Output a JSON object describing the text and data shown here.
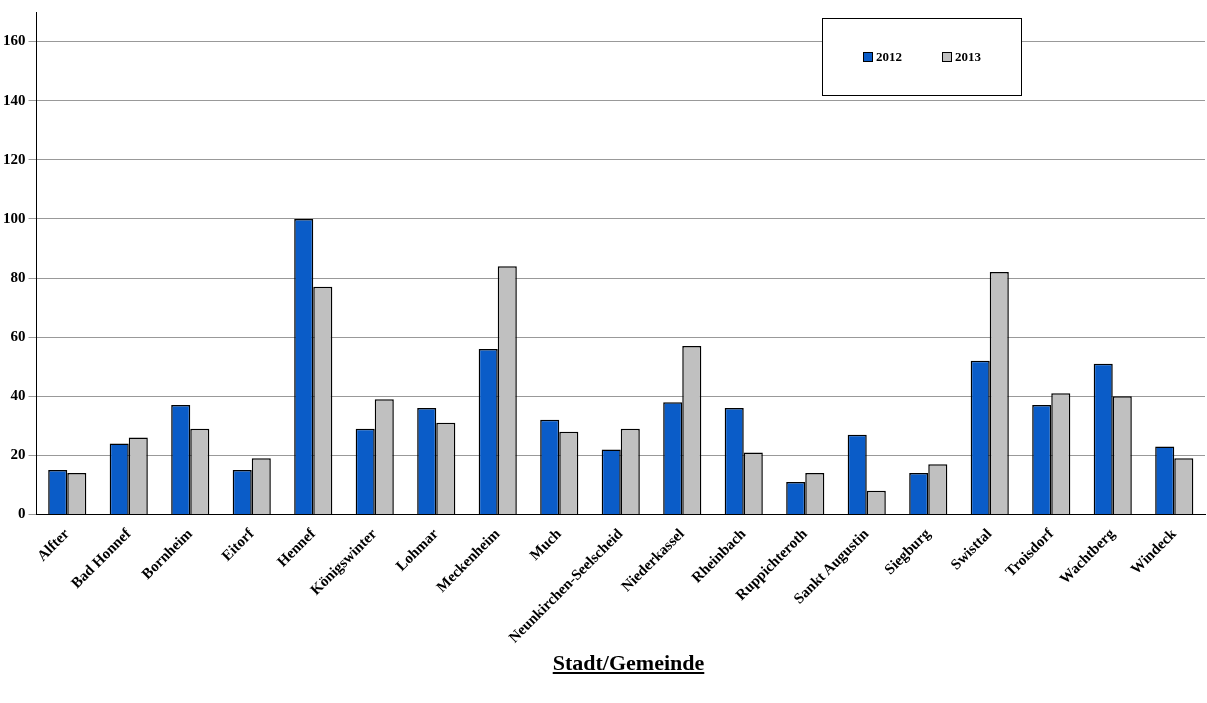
{
  "chart_data": {
    "type": "bar",
    "xlabel": "Stadt/Gemeinde",
    "categories": [
      "Alfter",
      "Bad Honnef",
      "Bornheim",
      "Eitorf",
      "Hennef",
      "Königswinter",
      "Lohmar",
      "Meckenheim",
      "Much",
      "Neunkirchen-Seelscheid",
      "Niederkassel",
      "Rheinbach",
      "Ruppichteroth",
      "Sankt Augustin",
      "Siegburg",
      "Swisttal",
      "Troisdorf",
      "Wachtberg",
      "Windeck"
    ],
    "series": [
      {
        "name": "2012",
        "color": "#0a5cc8",
        "values": [
          15,
          24,
          37,
          15,
          100,
          29,
          36,
          56,
          32,
          22,
          38,
          36,
          11,
          27,
          14,
          52,
          37,
          51,
          23
        ]
      },
      {
        "name": "2013",
        "color": "#c0c0c0",
        "values": [
          14,
          26,
          29,
          19,
          77,
          39,
          31,
          84,
          28,
          29,
          57,
          21,
          14,
          8,
          17,
          82,
          41,
          40,
          19
        ]
      }
    ],
    "ylim": [
      0,
      170
    ],
    "yticks": [
      0,
      20,
      40,
      60,
      80,
      100,
      120,
      140,
      160
    ],
    "grid": "y",
    "legend": "top right"
  }
}
